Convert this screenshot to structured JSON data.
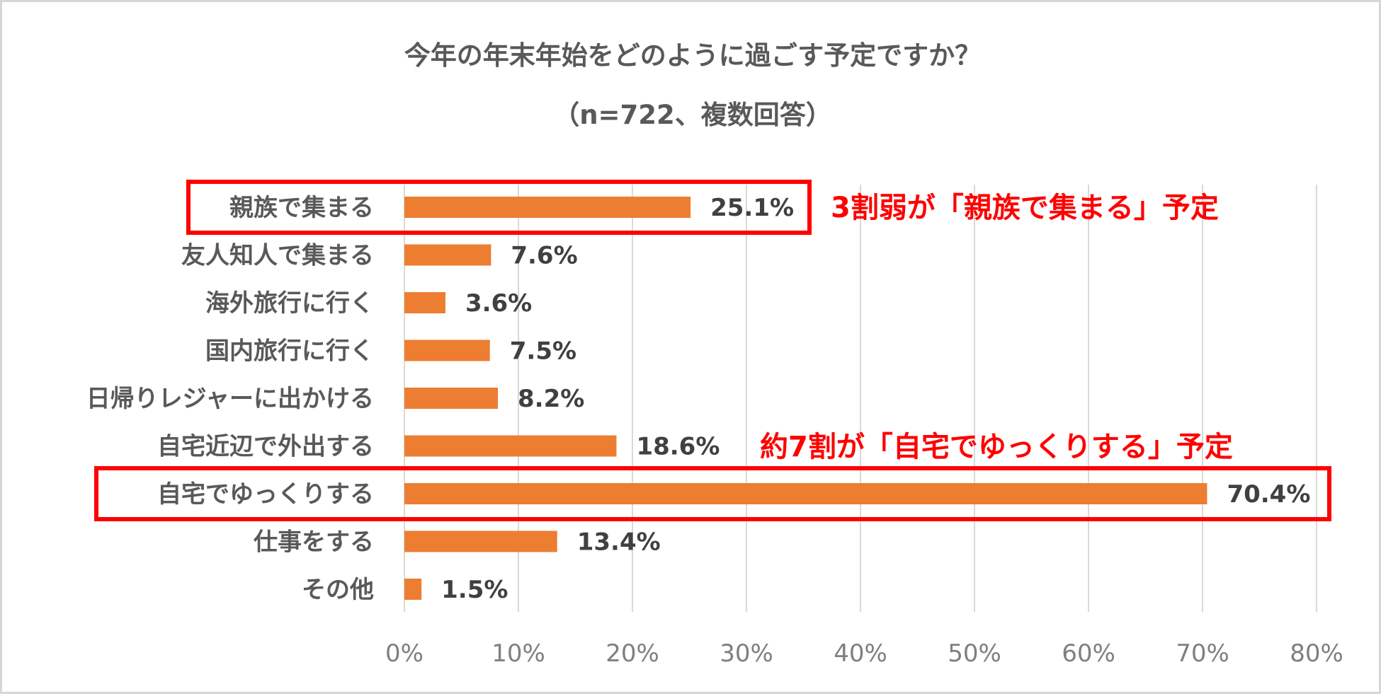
{
  "chart_data": {
    "type": "bar",
    "orientation": "horizontal",
    "title": "今年の年末年始をどのように過ごす予定ですか？",
    "subtitle": "（n=722、複数回答）",
    "categories": [
      "親族で集まる",
      "友人知人で集まる",
      "海外旅行に行く",
      "国内旅行に行く",
      "日帰りレジャーに出かける",
      "自宅近辺で外出する",
      "自宅でゆっくりする",
      "仕事をする",
      "その他"
    ],
    "values": [
      25.1,
      7.6,
      3.6,
      7.5,
      8.2,
      18.6,
      70.4,
      13.4,
      1.5
    ],
    "value_labels": [
      "25.1%",
      "7.6%",
      "3.6%",
      "7.5%",
      "8.2%",
      "18.6%",
      "70.4%",
      "13.4%",
      "1.5%"
    ],
    "xlim": [
      0,
      80
    ],
    "xticks": [
      0,
      10,
      20,
      30,
      40,
      50,
      60,
      70,
      80
    ],
    "xtick_labels": [
      "0%",
      "10%",
      "20%",
      "30%",
      "40%",
      "50%",
      "60%",
      "70%",
      "80%"
    ],
    "grid": "vertical",
    "legend": "none",
    "bar_color": "#ed7d31",
    "highlighted_categories": [
      "親族で集まる",
      "自宅でゆっくりする"
    ],
    "highlight_color": "#ff0000",
    "annotations": [
      {
        "text": "3割弱が「親族で集まる」予定",
        "category": "親族で集まる"
      },
      {
        "text": "約7割が「自宅でゆっくりする」予定",
        "category": "自宅でゆっくりする"
      }
    ]
  }
}
